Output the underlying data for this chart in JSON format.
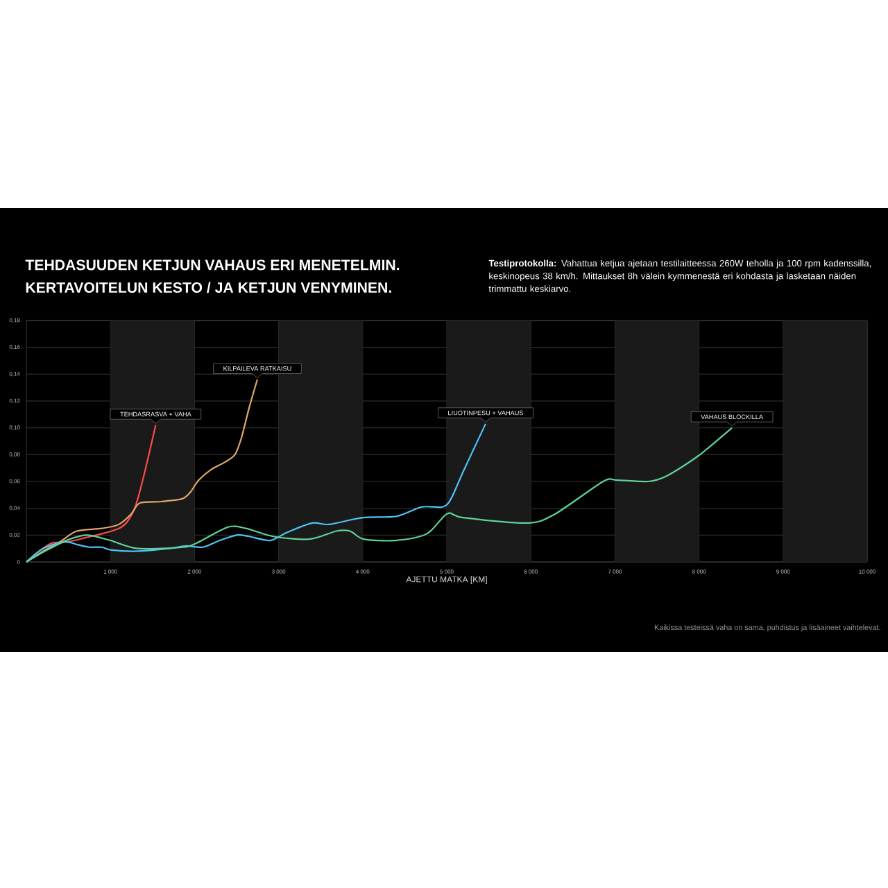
{
  "chart_data": {
    "type": "line",
    "title": "TEHDASUUDEN KETJUN VAHAUS ERI MENETELMIN.",
    "subtitle": "KERTAVOITELUN KESTO / JA KETJUN VENYMINEN.",
    "xlabel": "AJETTU MATKA [KM]",
    "annotations": [
      "**Testiprotokolla:** Vahattua ketjua ajetaan testilaitteessa 260W teholla ja 100 rpm kadenssilla, keskinopeus 38 km/h. Mittaukset 8h välein kymmenestä eri kohdasta ja lasketaan näiden trimmattu keskiarvo.",
      "Kaikissa testeissä vaha on sama, puhdistus ja lisäaineet vaihtelevat."
    ],
    "xlim": [
      0,
      10000
    ],
    "ylim": [
      0,
      0.18
    ],
    "xticks": [
      {
        "value": 1000,
        "label": "1 000"
      },
      {
        "value": 2000,
        "label": "2 000"
      },
      {
        "value": 3000,
        "label": "3 000"
      },
      {
        "value": 4000,
        "label": "4 000"
      },
      {
        "value": 5000,
        "label": "5 000"
      },
      {
        "value": 6000,
        "label": "6 000"
      },
      {
        "value": 7000,
        "label": "7 000"
      },
      {
        "value": 8000,
        "label": "8 000"
      },
      {
        "value": 9000,
        "label": "9 000"
      },
      {
        "value": 10000,
        "label": "10 000"
      }
    ],
    "yticks": [
      0,
      {
        "value": 0.02,
        "label": "0,02"
      },
      {
        "value": 0.04,
        "label": "0,04"
      },
      {
        "value": 0.06,
        "label": "0,06"
      },
      {
        "value": 0.08,
        "label": "0,08"
      },
      {
        "value": 0.1,
        "label": "0,10"
      },
      {
        "value": 0.12,
        "label": "0,12"
      },
      {
        "value": 0.14,
        "label": "0,14"
      },
      {
        "value": 0.16,
        "label": "0,16"
      },
      {
        "value": 0.18,
        "label": "0,18"
      }
    ],
    "grid": true,
    "bands": [
      {
        "axis": "x",
        "from": 1000,
        "to": 2000,
        "color": "#1a1a1a"
      },
      {
        "axis": "x",
        "from": 3000,
        "to": 4000,
        "color": "#1a1a1a"
      },
      {
        "axis": "x",
        "from": 5000,
        "to": 6000,
        "color": "#1a1a1a"
      },
      {
        "axis": "x",
        "from": 7000,
        "to": 8000,
        "color": "#1a1a1a"
      },
      {
        "axis": "x",
        "from": 9000,
        "to": 10000,
        "color": "#1a1a1a"
      }
    ],
    "series": [
      {
        "name": "TEHDASRASVA + VAHA",
        "color": "#ff4a4a",
        "x": [
          0,
          150,
          300,
          500,
          700,
          900,
          1100,
          1200,
          1300,
          1400,
          1538
        ],
        "values": [
          0,
          0.008,
          0.014,
          0.015,
          0.018,
          0.021,
          0.025,
          0.03,
          0.042,
          0.065,
          0.102
        ]
      },
      {
        "name": "KILPAILEVA RATKAISU",
        "color": "#e0a868",
        "x": [
          0,
          200,
          400,
          600,
          900,
          1100,
          1250,
          1350,
          1600,
          1850,
          1950,
          2050,
          2200,
          2350,
          2480,
          2560,
          2650,
          2747
        ],
        "values": [
          0,
          0.008,
          0.015,
          0.023,
          0.025,
          0.028,
          0.036,
          0.044,
          0.045,
          0.047,
          0.052,
          0.061,
          0.069,
          0.074,
          0.08,
          0.093,
          0.115,
          0.136
        ]
      },
      {
        "name": "LIUOTINPESU + VAHAUS",
        "color": "#4fc3f7",
        "x": [
          0,
          200,
          450,
          600,
          750,
          900,
          1000,
          1300,
          1700,
          1900,
          2100,
          2300,
          2500,
          2650,
          2900,
          3100,
          3400,
          3600,
          4000,
          4400,
          4700,
          4950,
          5050,
          5200,
          5462
        ],
        "values": [
          0,
          0.01,
          0.015,
          0.013,
          0.011,
          0.011,
          0.009,
          0.008,
          0.01,
          0.012,
          0.011,
          0.016,
          0.02,
          0.019,
          0.016,
          0.022,
          0.029,
          0.028,
          0.033,
          0.034,
          0.041,
          0.041,
          0.047,
          0.068,
          0.103
        ]
      },
      {
        "name": "VAHAUS BLOCKILLA",
        "color": "#5fd39a",
        "x": [
          0,
          250,
          516,
          731,
          1000,
          1323,
          1860,
          2022,
          2398,
          2613,
          2935,
          3366,
          3688,
          3849,
          4011,
          4387,
          4763,
          5005,
          5194,
          5946,
          6269,
          6860,
          7022,
          7398,
          7613,
          7989,
          8392
        ],
        "values": [
          0,
          0.009,
          0.017,
          0.02,
          0.016,
          0.01,
          0.011,
          0.014,
          0.026,
          0.025,
          0.019,
          0.017,
          0.023,
          0.023,
          0.017,
          0.016,
          0.021,
          0.036,
          0.033,
          0.029,
          0.035,
          0.06,
          0.061,
          0.06,
          0.064,
          0.079,
          0.1
        ]
      }
    ]
  }
}
